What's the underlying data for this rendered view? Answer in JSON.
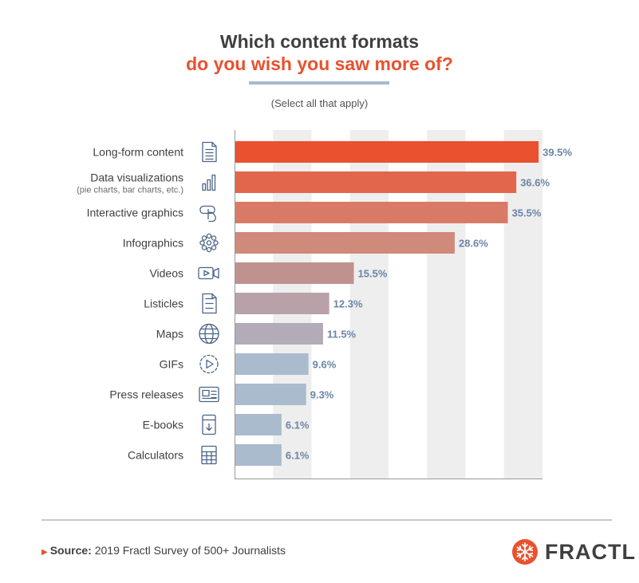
{
  "header": {
    "title_line1": "Which content formats",
    "title_line2": "do you wish you saw more of?",
    "subtitle": "(Select all that apply)"
  },
  "chart_data": {
    "type": "bar",
    "orientation": "horizontal",
    "categories": [
      "Long-form content",
      "Data visualizations",
      "Interactive graphics",
      "Infographics",
      "Videos",
      "Listicles",
      "Maps",
      "GIFs",
      "Press releases",
      "E-books",
      "Calculators"
    ],
    "category_notes": [
      "",
      "(pie charts, bar charts, etc.)",
      "",
      "",
      "",
      "",
      "",
      "",
      "",
      "",
      ""
    ],
    "values": [
      39.5,
      36.6,
      35.5,
      28.6,
      15.5,
      12.3,
      11.5,
      9.6,
      9.3,
      6.1,
      6.1
    ],
    "value_labels": [
      "39.5%",
      "36.6%",
      "35.5%",
      "28.6%",
      "15.5%",
      "12.3%",
      "11.5%",
      "9.6%",
      "9.3%",
      "6.1%",
      "6.1%"
    ],
    "icons": [
      "document-icon",
      "bar-chart-icon",
      "touch-icon",
      "network-icon",
      "video-icon",
      "list-icon",
      "globe-icon",
      "gif-play-icon",
      "newspaper-icon",
      "ebook-icon",
      "calculator-icon"
    ],
    "bar_colors": [
      "#e9512f",
      "#e1664b",
      "#d97a66",
      "#d08a7a",
      "#c0928f",
      "#b8a2a8",
      "#b3abb7",
      "#a9bbcc",
      "#a9bbcc",
      "#a9bbcc",
      "#a9bbcc"
    ],
    "xlim": [
      0,
      40
    ],
    "grid": "alternating vertical bands",
    "title": "",
    "xlabel": "",
    "ylabel": ""
  },
  "footer": {
    "source_label": "Source:",
    "source_text": "2019 Fractl Survey of 500+ Journalists",
    "brand": "FRACTL"
  },
  "colors": {
    "accent": "#e9512f",
    "text_dark": "#3f3f3f",
    "value_label": "#6b84a6",
    "icon": "#4a6488",
    "band": "#eeeeee",
    "rule": "#a7b9cc"
  }
}
